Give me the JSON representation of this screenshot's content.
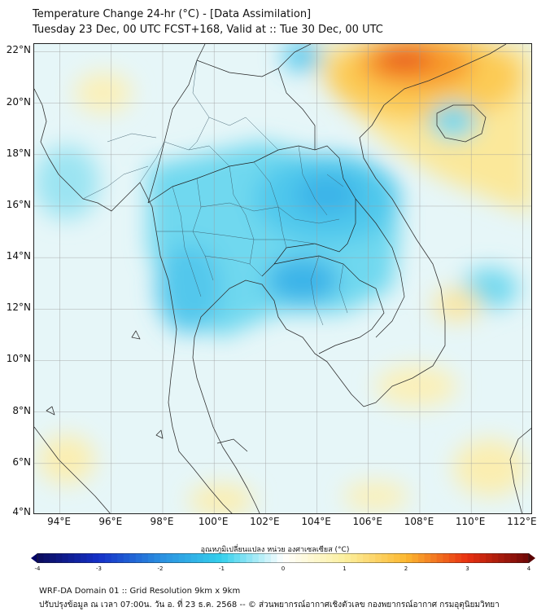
{
  "header": {
    "title": "Temperature Change 24-hr (°C) - [Data Assimilation]",
    "subtitle": "Tuesday 23 Dec, 00 UTC FCST+168, Valid at :: Tue 30 Dec, 00 UTC"
  },
  "map": {
    "lat_labels": [
      "22°N",
      "20°N",
      "18°N",
      "16°N",
      "14°N",
      "12°N",
      "10°N",
      "8°N",
      "6°N",
      "4°N"
    ],
    "lon_labels": [
      "94°E",
      "96°E",
      "98°E",
      "100°E",
      "102°E",
      "104°E",
      "106°E",
      "108°E",
      "110°E",
      "112°E"
    ],
    "lat_values": [
      22,
      20,
      18,
      16,
      14,
      12,
      10,
      8,
      6,
      4
    ],
    "lon_values": [
      94,
      96,
      98,
      100,
      102,
      104,
      106,
      108,
      110,
      112
    ],
    "lon_range": [
      93,
      112.4
    ],
    "lat_range": [
      4,
      22.3
    ],
    "grid": true
  },
  "colorbar": {
    "title": "อุณหภูมิเปลี่ยนแปลง หน่วย องศาเซลเซียส (°C)",
    "ticks": [
      "-4",
      "-3",
      "-2",
      "-1",
      "0",
      "1",
      "2",
      "3",
      "4"
    ],
    "tick_values": [
      -4,
      -3,
      -2,
      -1,
      0,
      1,
      2,
      3,
      4
    ],
    "range": [
      -4,
      4
    ],
    "colors": {
      "-4": "#0a0a5c",
      "-3": "#1530c8",
      "-2": "#2a8fe0",
      "-1": "#35d0ec",
      "0": "#ffffff",
      "1": "#fcf0a0",
      "2": "#fcb830",
      "3": "#e83010",
      "4": "#6e0808"
    }
  },
  "footer": {
    "line1": "WRF-DA Domain 01 :: Grid Resolution 9km x 9km",
    "line2": "ปรับปรุงข้อมูล ณ เวลา 07:00น. วัน อ. ที่ 23 ธ.ค. 2568 -- © ส่วนพยากรณ์อากาศเชิงตัวเลข กองพยากรณ์อากาศ กรมอุตุนิยมวิทยา"
  }
}
